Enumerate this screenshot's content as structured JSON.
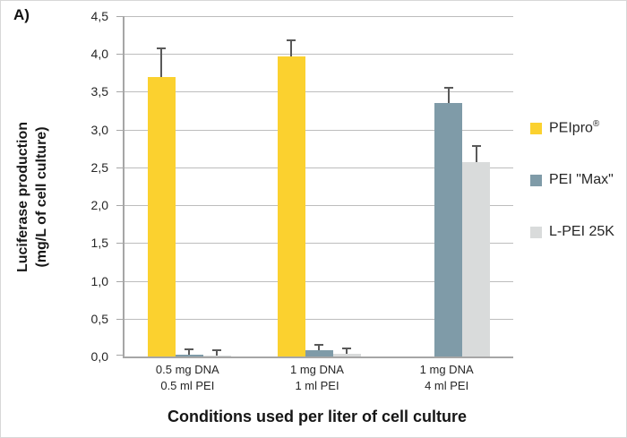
{
  "panel_label": "A)",
  "chart_data": {
    "type": "bar",
    "title": "",
    "xlabel": "Conditions used per liter of cell culture",
    "ylabel_line1": "Luciferase production",
    "ylabel_line2": "(mg/L of cell culture)",
    "ylim": [
      0,
      4.5
    ],
    "ytick_step": 0.5,
    "ytick_labels": [
      "0,0",
      "0,5",
      "1,0",
      "1,5",
      "2,0",
      "2,5",
      "3,0",
      "3,5",
      "4,0",
      "4,5"
    ],
    "categories": [
      "0.5 mg DNA\n0.5 ml PEI",
      "1 mg DNA\n1 ml PEI",
      "1 mg DNA\n4 ml PEI"
    ],
    "series": [
      {
        "name": "PEIpro",
        "name_sup": "®",
        "color": "#FBD12F",
        "values": [
          3.7,
          3.97,
          null
        ],
        "errors": [
          0.36,
          0.2,
          null
        ]
      },
      {
        "name": "PEI \"Max\"",
        "name_sup": "",
        "color": "#7F9BA8",
        "values": [
          0.02,
          0.08,
          3.35
        ],
        "errors": [
          0.06,
          0.06,
          0.19
        ]
      },
      {
        "name": "L-PEI 25K",
        "name_sup": "",
        "color": "#D9DBDB",
        "values": [
          0.01,
          0.04,
          2.57
        ],
        "errors": [
          0.06,
          0.05,
          0.2
        ]
      }
    ],
    "grid": "horizontal",
    "legend_position": "right",
    "colors": {
      "gridline": "#BDBDBD",
      "axis": "#A6A6A6",
      "error_bar": "#595959",
      "text": "#262626"
    }
  }
}
